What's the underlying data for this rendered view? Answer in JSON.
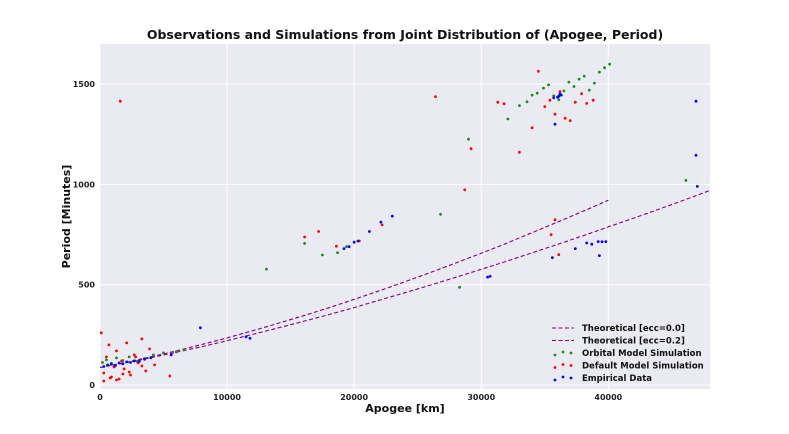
{
  "chart_data": {
    "type": "scatter",
    "title": "Observations and Simulations from Joint Distribution of (Apogee, Period)",
    "xlabel": "Apogee [km]",
    "ylabel": "Period [Minutes]",
    "xlim": [
      0,
      48000
    ],
    "ylim": [
      -20,
      1700
    ],
    "x_ticks": [
      0,
      10000,
      20000,
      30000,
      40000
    ],
    "y_ticks": [
      0,
      500,
      1000,
      1500
    ],
    "grid": true,
    "legend_position": "bottom-right",
    "colors": {
      "background": "#eaeaf2",
      "grid": "#ffffff",
      "theory": "#800080",
      "orbital": "#1a8a1a",
      "default": "#ff0000",
      "empirical": "#0000ff"
    },
    "legend": [
      {
        "key": "theory0",
        "label": "Theoretical [ecc=0.0]",
        "kind": "line"
      },
      {
        "key": "theory2",
        "label": "Theoretical [ecc=0.2]",
        "kind": "line"
      },
      {
        "key": "orbital",
        "label": "Orbital Model Simulation",
        "kind": "points"
      },
      {
        "key": "default",
        "label": "Default Model Simulation",
        "kind": "points"
      },
      {
        "key": "empirical",
        "label": "Empirical Data",
        "kind": "points"
      }
    ],
    "series": [
      {
        "key": "theory0",
        "name": "Theoretical [ecc=0.0]",
        "type": "line",
        "style": "dashed",
        "x": [
          0,
          2000,
          4000,
          6000,
          8000,
          10000,
          12000,
          14000,
          16000,
          18000,
          20000,
          22000,
          24000,
          26000,
          28000,
          30000,
          32000,
          34000,
          36000,
          38000,
          40000
        ],
        "y": [
          87,
          112,
          140,
          170,
          202,
          235,
          270,
          307,
          345,
          385,
          427,
          470,
          515,
          561,
          608,
          657,
          707,
          759,
          812,
          866,
          921
        ]
      },
      {
        "key": "theory2",
        "name": "Theoretical [ecc=0.2]",
        "type": "line",
        "style": "dashed",
        "x": [
          0,
          2000,
          4000,
          6000,
          8000,
          10000,
          12000,
          14000,
          16000,
          18000,
          20000,
          22000,
          24000,
          26000,
          28000,
          30000,
          32000,
          34000,
          36000,
          38000,
          40000,
          42000,
          44000,
          46000,
          48000
        ],
        "y": [
          87,
          110,
          136,
          163,
          191,
          221,
          252,
          284,
          317,
          351,
          386,
          423,
          460,
          498,
          537,
          577,
          617,
          659,
          701,
          744,
          788,
          832,
          877,
          923,
          970
        ]
      },
      {
        "key": "orbital",
        "name": "Orbital Model Simulation",
        "type": "scatter",
        "x": [
          200,
          500,
          900,
          1300,
          1800,
          2300,
          2900,
          3500,
          4200,
          5000,
          6000,
          6600,
          13100,
          16100,
          17500,
          18700,
          19400,
          26800,
          28300,
          29000,
          32100,
          33000,
          33600,
          34000,
          34400,
          34900,
          35300,
          35700,
          36100,
          36500,
          36900,
          37300,
          37700,
          38100,
          38500,
          38900,
          39300,
          39700,
          40100,
          46100
        ],
        "y": [
          112,
          125,
          108,
          135,
          122,
          140,
          118,
          132,
          150,
          160,
          165,
          175,
          578,
          706,
          648,
          660,
          690,
          851,
          487,
          1226,
          1326,
          1393,
          1412,
          1445,
          1455,
          1480,
          1496,
          1442,
          1422,
          1466,
          1510,
          1488,
          1525,
          1540,
          1470,
          1505,
          1560,
          1582,
          1600,
          1020
        ]
      },
      {
        "key": "default",
        "name": "Default Model Simulation",
        "type": "scatter",
        "x": [
          100,
          300,
          500,
          700,
          900,
          1100,
          1300,
          1500,
          1700,
          1900,
          2100,
          2400,
          2700,
          3000,
          3300,
          3600,
          3900,
          4300,
          5500,
          300,
          800,
          1300,
          1800,
          2300,
          2800,
          3300,
          1600,
          16100,
          17200,
          18600,
          20400,
          22200,
          26400,
          28700,
          29200,
          31300,
          31800,
          33000,
          34000,
          34500,
          35000,
          35400,
          35800,
          36200,
          36600,
          37000,
          37400,
          37900,
          38300,
          38800,
          35800,
          36100,
          35500
        ],
        "y": [
          260,
          60,
          140,
          200,
          40,
          90,
          170,
          30,
          120,
          80,
          210,
          50,
          150,
          110,
          230,
          70,
          180,
          100,
          45,
          20,
          35,
          25,
          55,
          65,
          140,
          95,
          1415,
          738,
          765,
          692,
          718,
          798,
          1438,
          973,
          1178,
          1410,
          1402,
          1160,
          1282,
          1564,
          1388,
          1420,
          1350,
          1462,
          1330,
          1318,
          1410,
          1452,
          1404,
          1420,
          824,
          650,
          750
        ]
      },
      {
        "key": "empirical",
        "name": "Empirical Data",
        "type": "scatter",
        "x": [
          300,
          600,
          900,
          1200,
          1500,
          1800,
          2100,
          2400,
          2700,
          3100,
          3500,
          4000,
          5600,
          7900,
          11500,
          11800,
          19200,
          19600,
          20000,
          20300,
          21200,
          22100,
          23000,
          30500,
          30700,
          35600,
          35800,
          36000,
          36100,
          36200,
          37400,
          38300,
          38700,
          39200,
          39500,
          39800,
          39300,
          46900,
          46900,
          47000,
          35700,
          36300
        ],
        "y": [
          92,
          100,
          104,
          96,
          110,
          106,
          115,
          112,
          120,
          118,
          128,
          136,
          150,
          285,
          240,
          233,
          680,
          690,
          712,
          718,
          765,
          812,
          842,
          538,
          542,
          635,
          1300,
          1435,
          1440,
          1450,
          680,
          708,
          702,
          715,
          714,
          715,
          645,
          1415,
          1145,
          990,
          1432,
          1445
        ]
      }
    ]
  }
}
